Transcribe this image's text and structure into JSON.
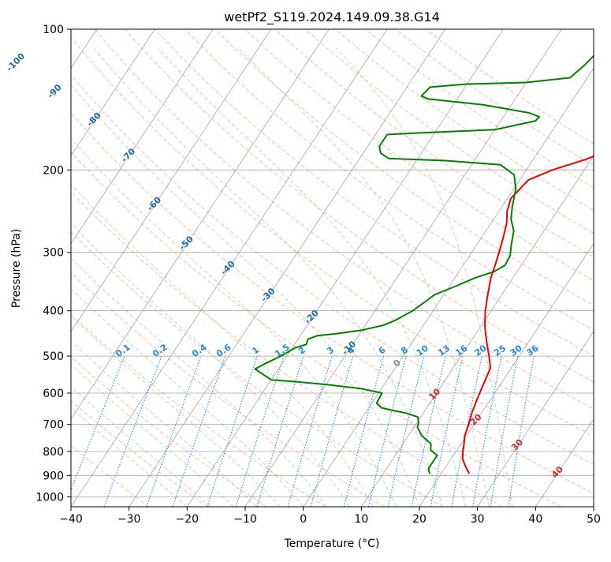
{
  "chart_data": {
    "type": "line",
    "title": "wetPf2_S119.2024.149.09.38.G14",
    "xlabel": "Temperature (°C)",
    "ylabel": "Pressure (hPa)",
    "xlim": [
      -40,
      50
    ],
    "ylim": [
      1050,
      100
    ],
    "y_scale": "log",
    "grid": true,
    "x_ticks": [
      -40,
      -30,
      -20,
      -10,
      0,
      10,
      20,
      30,
      40,
      50
    ],
    "x_tick_labels": [
      "−40",
      "−30",
      "−20",
      "−10",
      "0",
      "10",
      "20",
      "30",
      "40",
      "50"
    ],
    "y_ticks": [
      100,
      200,
      300,
      400,
      500,
      600,
      700,
      800,
      900,
      1000
    ],
    "y_tick_labels": [
      "100",
      "200",
      "300",
      "400",
      "500",
      "600",
      "700",
      "800",
      "900",
      "1000"
    ],
    "series": [
      {
        "color": "#ee0000",
        "points": [
          [
            24.8,
            892
          ],
          [
            23.3,
            860
          ],
          [
            22.0,
            830
          ],
          [
            21.2,
            800
          ],
          [
            20.5,
            770
          ],
          [
            19.7,
            740
          ],
          [
            19.1,
            700
          ],
          [
            18.3,
            660
          ],
          [
            17.7,
            620
          ],
          [
            17.0,
            570
          ],
          [
            16.4,
            530
          ],
          [
            14.8,
            500
          ],
          [
            13.0,
            470
          ],
          [
            11.8,
            450
          ],
          [
            10.6,
            430
          ],
          [
            9.0,
            400
          ],
          [
            7.6,
            370
          ],
          [
            6.2,
            340
          ],
          [
            5.5,
            320
          ],
          [
            4.7,
            300
          ],
          [
            3.8,
            280
          ],
          [
            2.7,
            260
          ],
          [
            1.4,
            245
          ],
          [
            0.6,
            230
          ],
          [
            1.5,
            210
          ],
          [
            4.5,
            200
          ],
          [
            9.0,
            190
          ],
          [
            12.5,
            180
          ],
          [
            14.3,
            170
          ],
          [
            15.2,
            160
          ],
          [
            15.8,
            150
          ],
          [
            16.1,
            140
          ],
          [
            15.6,
            130
          ],
          [
            14.3,
            120
          ],
          [
            13.7,
            114
          ],
          [
            14.4,
            108
          ],
          [
            16.5,
            100
          ]
        ]
      },
      {
        "color": "#008000",
        "points": [
          [
            18.0,
            893
          ],
          [
            17.2,
            870
          ],
          [
            17.2,
            815
          ],
          [
            15.5,
            795
          ],
          [
            14.8,
            770
          ],
          [
            12.3,
            740
          ],
          [
            10.6,
            710
          ],
          [
            10.3,
            695
          ],
          [
            9.5,
            675
          ],
          [
            7.0,
            662
          ],
          [
            4.0,
            652
          ],
          [
            2.2,
            645
          ],
          [
            0.8,
            630
          ],
          [
            0.6,
            600
          ],
          [
            -3.5,
            587
          ],
          [
            -10.0,
            575
          ],
          [
            -15.0,
            568
          ],
          [
            -20.0,
            562
          ],
          [
            -24.0,
            533
          ],
          [
            -23.0,
            520
          ],
          [
            -21.0,
            500
          ],
          [
            -19.5,
            480
          ],
          [
            -18.0,
            472
          ],
          [
            -18.3,
            460
          ],
          [
            -17.0,
            452
          ],
          [
            -14.0,
            448
          ],
          [
            -10.0,
            440
          ],
          [
            -7.0,
            430
          ],
          [
            -5.5,
            420
          ],
          [
            -3.5,
            400
          ],
          [
            -2.2,
            380
          ],
          [
            -1.6,
            370
          ],
          [
            1.0,
            355
          ],
          [
            3.5,
            340
          ],
          [
            6.0,
            330
          ],
          [
            7.2,
            320
          ],
          [
            7.0,
            305
          ],
          [
            6.0,
            290
          ],
          [
            4.8,
            270
          ],
          [
            3.0,
            255
          ],
          [
            1.8,
            240
          ],
          [
            0.4,
            220
          ],
          [
            -1.5,
            205
          ],
          [
            -5.0,
            195
          ],
          [
            -15.0,
            191
          ],
          [
            -25.0,
            189
          ],
          [
            -27.0,
            184
          ],
          [
            -28.0,
            178
          ],
          [
            -28.0,
            168
          ],
          [
            -24.0,
            167
          ],
          [
            -10.0,
            164
          ],
          [
            -4.0,
            157
          ],
          [
            -3.8,
            154
          ],
          [
            -6.0,
            151
          ],
          [
            -15.0,
            145
          ],
          [
            -25.0,
            141
          ],
          [
            -26.5,
            139
          ],
          [
            -26.0,
            133
          ],
          [
            -20.0,
            131
          ],
          [
            -10.0,
            130
          ],
          [
            -3.0,
            127
          ],
          [
            -2.0,
            120
          ],
          [
            -1.0,
            110
          ],
          [
            0.0,
            103
          ],
          [
            1.0,
            100
          ]
        ]
      }
    ],
    "mixing_ratio_labels": [
      "0.1",
      "0.2",
      "0.4",
      "0.6",
      "1",
      "1.5",
      "2",
      "3",
      "4",
      "6",
      "8",
      "10",
      "13",
      "16",
      "20",
      "25",
      "30",
      "36"
    ],
    "dry_adiabat_labels": [
      "-100",
      "-90",
      "-80",
      "-70",
      "-60",
      "-50",
      "-40",
      "-30",
      "-20",
      "-10",
      "0",
      "10",
      "20",
      "30",
      "40"
    ],
    "colors": {
      "temperature": "#ee0000",
      "dewpoint": "#008000",
      "mixing_ratio": "#1e88e5",
      "dry_adiabat": "#ffa07a",
      "moist_adiabat": "#90c890",
      "isotherm": "#808080",
      "adiabat_label": "#1f6ba5",
      "warm_label": "#d62728",
      "zero_label": "#888888",
      "frame": "#000000"
    }
  }
}
